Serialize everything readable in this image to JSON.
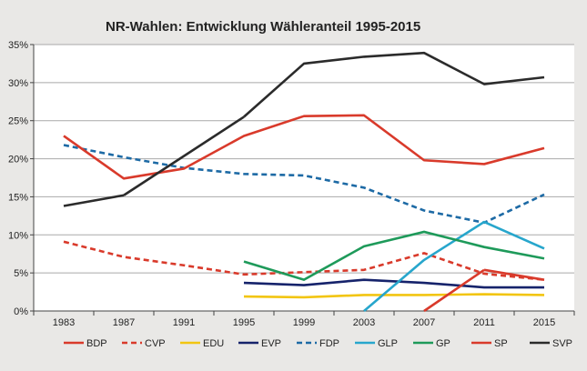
{
  "chart_data": {
    "type": "line",
    "title": "NR-Wahlen: Entwicklung Wähleranteil 1995-2015",
    "xlabel": "",
    "ylabel": "",
    "x": [
      "1983",
      "1987",
      "1991",
      "1995",
      "1999",
      "2003",
      "2007",
      "2011",
      "2015"
    ],
    "y_ticks": [
      "0%",
      "5%",
      "10%",
      "15%",
      "20%",
      "25%",
      "30%",
      "35%"
    ],
    "ylim": [
      0,
      35
    ],
    "grid": true,
    "legend_position": "bottom",
    "series": [
      {
        "name": "BDP",
        "color": "#d93a2b",
        "dash": false,
        "values": [
          null,
          null,
          null,
          null,
          null,
          null,
          null,
          5.4,
          4.1
        ]
      },
      {
        "name": "CVP",
        "color": "#d93a2b",
        "dash": true,
        "values": [
          9.1,
          7.1,
          6.0,
          4.8,
          5.1,
          5.4,
          7.6,
          4.9,
          4.1
        ]
      },
      {
        "name": "EDU",
        "color": "#f2c511",
        "dash": false,
        "values": [
          null,
          null,
          null,
          1.9,
          1.8,
          2.1,
          2.1,
          2.2,
          2.1
        ]
      },
      {
        "name": "EVP",
        "color": "#16236b",
        "dash": false,
        "values": [
          null,
          null,
          null,
          3.7,
          3.4,
          4.1,
          3.7,
          3.1,
          3.1
        ]
      },
      {
        "name": "FDP",
        "color": "#1d6aa5",
        "dash": true,
        "values": [
          21.8,
          20.2,
          18.8,
          18.0,
          17.8,
          16.2,
          13.2,
          11.6,
          15.3
        ]
      },
      {
        "name": "GLP",
        "color": "#27a6cc",
        "dash": false,
        "values": [
          null,
          null,
          null,
          null,
          null,
          0.0,
          6.7,
          11.7,
          8.2
        ]
      },
      {
        "name": "GP",
        "color": "#1e9a5a",
        "dash": false,
        "values": [
          null,
          null,
          null,
          6.5,
          4.1,
          8.5,
          10.4,
          8.4,
          6.9
        ]
      },
      {
        "name": "SP",
        "color": "#d93a2b",
        "dash": false,
        "values": [
          23.0,
          17.4,
          18.7,
          23.0,
          25.6,
          25.7,
          19.8,
          19.3,
          21.4
        ]
      },
      {
        "name": "SVP",
        "color": "#2b2b2b",
        "dash": false,
        "values": [
          13.8,
          15.2,
          null,
          25.5,
          32.5,
          33.4,
          33.9,
          29.8,
          30.7
        ]
      }
    ],
    "extra_segments": [
      {
        "name": "SP",
        "x": [
          "2007",
          "2011"
        ],
        "values": [
          0.0,
          5.4
        ]
      }
    ]
  }
}
